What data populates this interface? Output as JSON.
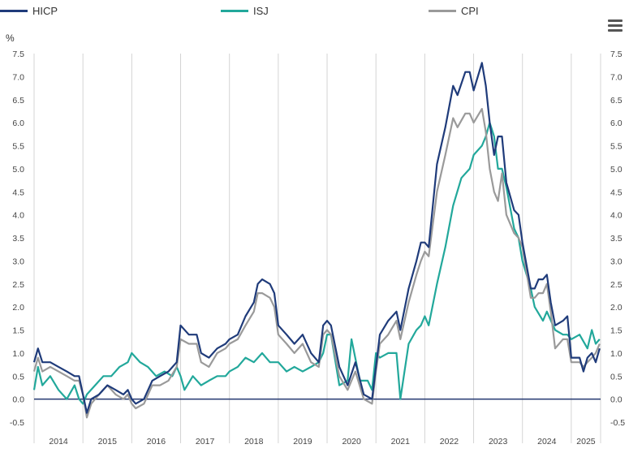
{
  "toolbar": {
    "menu_icon": "hamburger-menu-icon"
  },
  "chart_data": {
    "type": "line",
    "unit_label": "%",
    "ylim": [
      -0.5,
      7.5
    ],
    "yticks": [
      "-0.5",
      "0.0",
      "0.5",
      "1.0",
      "1.5",
      "2.0",
      "2.5",
      "3.0",
      "3.5",
      "4.0",
      "4.5",
      "5.0",
      "5.5",
      "6.0",
      "6.5",
      "7.0",
      "7.5"
    ],
    "categories": [
      "2014",
      "2015",
      "2016",
      "2017",
      "2018",
      "2019",
      "2020",
      "2021",
      "2022",
      "2023",
      "2024",
      "2025"
    ],
    "x_start": 2014.0,
    "x_end": 2025.6,
    "grid": "vertical year separators",
    "legend_position": "top",
    "series": [
      {
        "name": "HICP",
        "color": "#1f3b7a",
        "points": [
          [
            2014.0,
            0.8
          ],
          [
            2014.08,
            1.1
          ],
          [
            2014.17,
            0.8
          ],
          [
            2014.33,
            0.8
          ],
          [
            2014.5,
            0.7
          ],
          [
            2014.67,
            0.6
          ],
          [
            2014.83,
            0.5
          ],
          [
            2014.92,
            0.5
          ],
          [
            2015.0,
            0.1
          ],
          [
            2015.08,
            -0.3
          ],
          [
            2015.17,
            0.0
          ],
          [
            2015.33,
            0.1
          ],
          [
            2015.5,
            0.3
          ],
          [
            2015.67,
            0.2
          ],
          [
            2015.83,
            0.1
          ],
          [
            2015.92,
            0.2
          ],
          [
            2016.0,
            0.0
          ],
          [
            2016.08,
            -0.1
          ],
          [
            2016.25,
            0.0
          ],
          [
            2016.42,
            0.4
          ],
          [
            2016.58,
            0.5
          ],
          [
            2016.75,
            0.6
          ],
          [
            2016.92,
            0.8
          ],
          [
            2017.0,
            1.6
          ],
          [
            2017.17,
            1.4
          ],
          [
            2017.33,
            1.4
          ],
          [
            2017.42,
            1.0
          ],
          [
            2017.58,
            0.9
          ],
          [
            2017.75,
            1.1
          ],
          [
            2017.92,
            1.2
          ],
          [
            2018.0,
            1.3
          ],
          [
            2018.17,
            1.4
          ],
          [
            2018.33,
            1.8
          ],
          [
            2018.5,
            2.1
          ],
          [
            2018.58,
            2.5
          ],
          [
            2018.67,
            2.6
          ],
          [
            2018.83,
            2.5
          ],
          [
            2018.92,
            2.3
          ],
          [
            2019.0,
            1.6
          ],
          [
            2019.17,
            1.4
          ],
          [
            2019.33,
            1.2
          ],
          [
            2019.5,
            1.4
          ],
          [
            2019.67,
            1.0
          ],
          [
            2019.83,
            0.8
          ],
          [
            2019.92,
            1.6
          ],
          [
            2020.0,
            1.7
          ],
          [
            2020.08,
            1.6
          ],
          [
            2020.25,
            0.7
          ],
          [
            2020.42,
            0.3
          ],
          [
            2020.58,
            0.8
          ],
          [
            2020.75,
            0.1
          ],
          [
            2020.92,
            0.0
          ],
          [
            2021.0,
            0.7
          ],
          [
            2021.08,
            1.4
          ],
          [
            2021.25,
            1.7
          ],
          [
            2021.42,
            1.9
          ],
          [
            2021.5,
            1.5
          ],
          [
            2021.67,
            2.4
          ],
          [
            2021.83,
            3.0
          ],
          [
            2021.92,
            3.4
          ],
          [
            2022.0,
            3.4
          ],
          [
            2022.08,
            3.3
          ],
          [
            2022.25,
            5.1
          ],
          [
            2022.42,
            5.9
          ],
          [
            2022.58,
            6.8
          ],
          [
            2022.67,
            6.6
          ],
          [
            2022.83,
            7.1
          ],
          [
            2022.92,
            7.1
          ],
          [
            2023.0,
            6.7
          ],
          [
            2023.17,
            7.3
          ],
          [
            2023.25,
            6.8
          ],
          [
            2023.33,
            6.0
          ],
          [
            2023.42,
            5.3
          ],
          [
            2023.5,
            5.7
          ],
          [
            2023.58,
            5.7
          ],
          [
            2023.67,
            4.7
          ],
          [
            2023.83,
            4.1
          ],
          [
            2023.92,
            4.0
          ],
          [
            2024.0,
            3.4
          ],
          [
            2024.17,
            2.4
          ],
          [
            2024.25,
            2.4
          ],
          [
            2024.33,
            2.6
          ],
          [
            2024.42,
            2.6
          ],
          [
            2024.5,
            2.7
          ],
          [
            2024.58,
            2.1
          ],
          [
            2024.67,
            1.6
          ],
          [
            2024.83,
            1.7
          ],
          [
            2024.92,
            1.8
          ],
          [
            2025.0,
            0.9
          ],
          [
            2025.17,
            0.9
          ],
          [
            2025.25,
            0.6
          ],
          [
            2025.33,
            0.9
          ],
          [
            2025.42,
            1.0
          ],
          [
            2025.5,
            0.8
          ],
          [
            2025.58,
            1.1
          ]
        ]
      },
      {
        "name": "ISJ",
        "color": "#22a89b",
        "points": [
          [
            2014.0,
            0.2
          ],
          [
            2014.08,
            0.7
          ],
          [
            2014.17,
            0.3
          ],
          [
            2014.33,
            0.5
          ],
          [
            2014.5,
            0.2
          ],
          [
            2014.67,
            0.0
          ],
          [
            2014.83,
            0.3
          ],
          [
            2014.92,
            0.0
          ],
          [
            2015.0,
            -0.1
          ],
          [
            2015.08,
            0.1
          ],
          [
            2015.25,
            0.3
          ],
          [
            2015.42,
            0.5
          ],
          [
            2015.58,
            0.5
          ],
          [
            2015.75,
            0.7
          ],
          [
            2015.92,
            0.8
          ],
          [
            2016.0,
            1.0
          ],
          [
            2016.17,
            0.8
          ],
          [
            2016.33,
            0.7
          ],
          [
            2016.5,
            0.5
          ],
          [
            2016.67,
            0.6
          ],
          [
            2016.83,
            0.5
          ],
          [
            2016.92,
            0.7
          ],
          [
            2017.0,
            0.5
          ],
          [
            2017.08,
            0.2
          ],
          [
            2017.25,
            0.5
          ],
          [
            2017.42,
            0.3
          ],
          [
            2017.58,
            0.4
          ],
          [
            2017.75,
            0.5
          ],
          [
            2017.92,
            0.5
          ],
          [
            2018.0,
            0.6
          ],
          [
            2018.17,
            0.7
          ],
          [
            2018.33,
            0.9
          ],
          [
            2018.5,
            0.8
          ],
          [
            2018.67,
            1.0
          ],
          [
            2018.83,
            0.8
          ],
          [
            2018.92,
            0.8
          ],
          [
            2019.0,
            0.8
          ],
          [
            2019.17,
            0.6
          ],
          [
            2019.33,
            0.7
          ],
          [
            2019.5,
            0.6
          ],
          [
            2019.67,
            0.7
          ],
          [
            2019.83,
            0.8
          ],
          [
            2019.92,
            1.0
          ],
          [
            2020.0,
            1.4
          ],
          [
            2020.08,
            1.4
          ],
          [
            2020.25,
            0.3
          ],
          [
            2020.42,
            0.4
          ],
          [
            2020.5,
            1.3
          ],
          [
            2020.67,
            0.4
          ],
          [
            2020.83,
            0.4
          ],
          [
            2020.92,
            0.2
          ],
          [
            2021.0,
            1.0
          ],
          [
            2021.08,
            0.9
          ],
          [
            2021.25,
            1.0
          ],
          [
            2021.42,
            1.0
          ],
          [
            2021.5,
            0.0
          ],
          [
            2021.67,
            1.2
          ],
          [
            2021.83,
            1.5
          ],
          [
            2021.92,
            1.6
          ],
          [
            2022.0,
            1.8
          ],
          [
            2022.08,
            1.6
          ],
          [
            2022.25,
            2.5
          ],
          [
            2022.42,
            3.3
          ],
          [
            2022.58,
            4.2
          ],
          [
            2022.75,
            4.8
          ],
          [
            2022.92,
            5.0
          ],
          [
            2023.0,
            5.3
          ],
          [
            2023.17,
            5.5
          ],
          [
            2023.25,
            5.7
          ],
          [
            2023.33,
            6.0
          ],
          [
            2023.42,
            5.7
          ],
          [
            2023.5,
            5.0
          ],
          [
            2023.58,
            5.0
          ],
          [
            2023.67,
            4.6
          ],
          [
            2023.83,
            3.7
          ],
          [
            2023.92,
            3.5
          ],
          [
            2024.0,
            3.0
          ],
          [
            2024.17,
            2.4
          ],
          [
            2024.25,
            2.0
          ],
          [
            2024.42,
            1.7
          ],
          [
            2024.5,
            1.9
          ],
          [
            2024.67,
            1.5
          ],
          [
            2024.83,
            1.4
          ],
          [
            2024.92,
            1.4
          ],
          [
            2025.0,
            1.3
          ],
          [
            2025.17,
            1.4
          ],
          [
            2025.33,
            1.1
          ],
          [
            2025.42,
            1.5
          ],
          [
            2025.5,
            1.2
          ],
          [
            2025.58,
            1.3
          ]
        ]
      },
      {
        "name": "CPI",
        "color": "#9a9a9a",
        "points": [
          [
            2014.0,
            0.6
          ],
          [
            2014.08,
            0.9
          ],
          [
            2014.17,
            0.6
          ],
          [
            2014.33,
            0.7
          ],
          [
            2014.5,
            0.6
          ],
          [
            2014.67,
            0.5
          ],
          [
            2014.83,
            0.4
          ],
          [
            2014.92,
            0.4
          ],
          [
            2015.0,
            0.1
          ],
          [
            2015.08,
            -0.4
          ],
          [
            2015.17,
            -0.1
          ],
          [
            2015.33,
            0.1
          ],
          [
            2015.5,
            0.3
          ],
          [
            2015.67,
            0.1
          ],
          [
            2015.83,
            0.0
          ],
          [
            2015.92,
            0.1
          ],
          [
            2016.0,
            -0.1
          ],
          [
            2016.08,
            -0.2
          ],
          [
            2016.25,
            -0.1
          ],
          [
            2016.42,
            0.3
          ],
          [
            2016.58,
            0.3
          ],
          [
            2016.75,
            0.4
          ],
          [
            2016.92,
            0.7
          ],
          [
            2017.0,
            1.3
          ],
          [
            2017.17,
            1.2
          ],
          [
            2017.33,
            1.2
          ],
          [
            2017.42,
            0.8
          ],
          [
            2017.58,
            0.7
          ],
          [
            2017.75,
            1.0
          ],
          [
            2017.92,
            1.1
          ],
          [
            2018.0,
            1.2
          ],
          [
            2018.17,
            1.3
          ],
          [
            2018.33,
            1.6
          ],
          [
            2018.5,
            1.9
          ],
          [
            2018.58,
            2.3
          ],
          [
            2018.67,
            2.3
          ],
          [
            2018.83,
            2.2
          ],
          [
            2018.92,
            2.0
          ],
          [
            2019.0,
            1.4
          ],
          [
            2019.17,
            1.2
          ],
          [
            2019.33,
            1.0
          ],
          [
            2019.5,
            1.2
          ],
          [
            2019.67,
            0.8
          ],
          [
            2019.83,
            0.7
          ],
          [
            2019.92,
            1.4
          ],
          [
            2020.0,
            1.5
          ],
          [
            2020.08,
            1.4
          ],
          [
            2020.25,
            0.5
          ],
          [
            2020.42,
            0.2
          ],
          [
            2020.58,
            0.6
          ],
          [
            2020.75,
            0.0
          ],
          [
            2020.92,
            -0.1
          ],
          [
            2021.0,
            0.6
          ],
          [
            2021.08,
            1.2
          ],
          [
            2021.25,
            1.4
          ],
          [
            2021.42,
            1.7
          ],
          [
            2021.5,
            1.3
          ],
          [
            2021.67,
            2.1
          ],
          [
            2021.83,
            2.7
          ],
          [
            2021.92,
            3.0
          ],
          [
            2022.0,
            3.2
          ],
          [
            2022.08,
            3.1
          ],
          [
            2022.25,
            4.5
          ],
          [
            2022.42,
            5.3
          ],
          [
            2022.58,
            6.1
          ],
          [
            2022.67,
            5.9
          ],
          [
            2022.83,
            6.2
          ],
          [
            2022.92,
            6.2
          ],
          [
            2023.0,
            6.0
          ],
          [
            2023.17,
            6.3
          ],
          [
            2023.25,
            5.8
          ],
          [
            2023.33,
            5.0
          ],
          [
            2023.42,
            4.5
          ],
          [
            2023.5,
            4.3
          ],
          [
            2023.58,
            4.9
          ],
          [
            2023.67,
            4.0
          ],
          [
            2023.83,
            3.6
          ],
          [
            2023.92,
            3.5
          ],
          [
            2024.0,
            3.3
          ],
          [
            2024.17,
            2.2
          ],
          [
            2024.25,
            2.2
          ],
          [
            2024.33,
            2.3
          ],
          [
            2024.42,
            2.3
          ],
          [
            2024.5,
            2.5
          ],
          [
            2024.58,
            1.9
          ],
          [
            2024.67,
            1.1
          ],
          [
            2024.83,
            1.3
          ],
          [
            2024.92,
            1.3
          ],
          [
            2025.0,
            0.8
          ],
          [
            2025.17,
            0.8
          ],
          [
            2025.25,
            0.7
          ],
          [
            2025.33,
            0.8
          ],
          [
            2025.42,
            0.9
          ],
          [
            2025.5,
            1.0
          ],
          [
            2025.58,
            1.2
          ]
        ]
      }
    ]
  }
}
